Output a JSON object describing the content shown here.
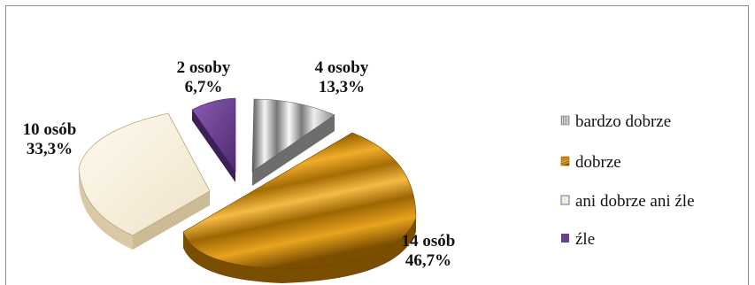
{
  "chart_data": {
    "type": "pie",
    "title": "",
    "categories": [
      "bardzo dobrze",
      "dobrze",
      "ani dobrze ani źle",
      "źle"
    ],
    "values": [
      4,
      14,
      10,
      2
    ],
    "percent_labels": [
      "13,3%",
      "46,7%",
      "33,3%",
      "6,7%"
    ],
    "count_labels": [
      "4 osoby",
      "14 osób",
      "10 osób",
      "2 osoby"
    ],
    "colors": [
      "#9a9a9a",
      "#c98a12",
      "#f5ecd8",
      "#6a3f8f"
    ],
    "legend_position": "right",
    "exploded": true,
    "style": "3d"
  }
}
